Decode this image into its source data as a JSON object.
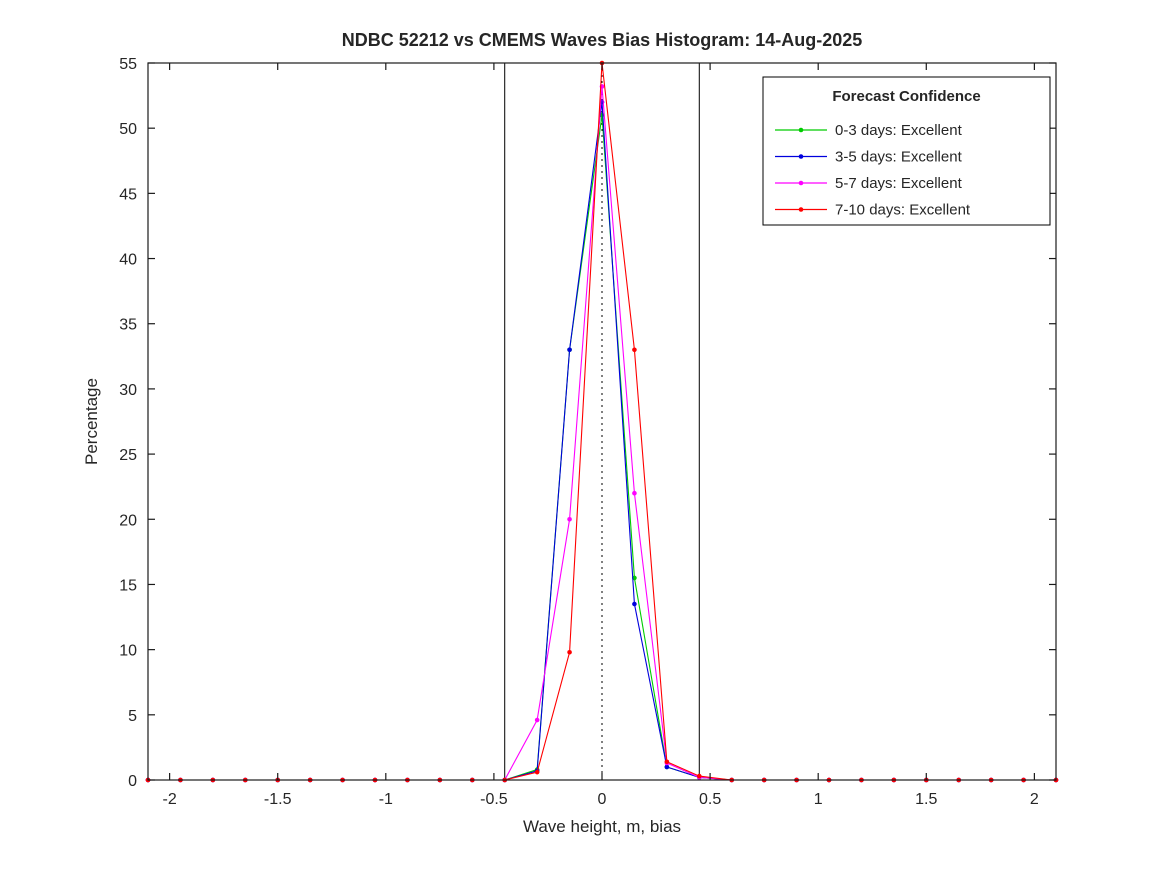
{
  "chart_data": {
    "type": "line",
    "title": "NDBC 52212 vs CMEMS Waves Bias Histogram: 14-Aug-2025",
    "xlabel": "Wave height, m, bias",
    "ylabel": "Percentage",
    "xlim": [
      -2.1,
      2.1
    ],
    "ylim": [
      0,
      55
    ],
    "xticks": [
      -2,
      -1.5,
      -1,
      -0.5,
      0,
      0.5,
      1,
      1.5,
      2
    ],
    "xtick_labels": [
      "-2",
      "-1.5",
      "-1",
      "-0.5",
      "0",
      "0.5",
      "1",
      "1.5",
      "2"
    ],
    "yticks": [
      0,
      5,
      10,
      15,
      20,
      25,
      30,
      35,
      40,
      45,
      50,
      55
    ],
    "ytick_labels": [
      "0",
      "5",
      "10",
      "15",
      "20",
      "25",
      "30",
      "35",
      "40",
      "45",
      "50",
      "55"
    ],
    "grid": false,
    "box": true,
    "vlines_solid": [
      -0.45,
      0.45
    ],
    "vline_dotted": 0,
    "legend_title": "Forecast Confidence",
    "legend_position": "top-right",
    "x": [
      -2.1,
      -1.95,
      -1.8,
      -1.65,
      -1.5,
      -1.35,
      -1.2,
      -1.05,
      -0.9,
      -0.75,
      -0.6,
      -0.45,
      -0.3,
      -0.15,
      0,
      0.15,
      0.3,
      0.45,
      0.6,
      0.75,
      0.9,
      1.05,
      1.2,
      1.35,
      1.5,
      1.65,
      1.8,
      1.95,
      2.1
    ],
    "series": [
      {
        "name": "0-3 days: Excellent",
        "color": "#00cc00",
        "values": [
          0,
          0,
          0,
          0,
          0,
          0,
          0,
          0,
          0,
          0,
          0,
          0,
          0.8,
          33,
          51,
          15.5,
          1.0,
          0.2,
          0,
          0,
          0,
          0,
          0,
          0,
          0,
          0,
          0,
          0,
          0
        ]
      },
      {
        "name": "3-5 days: Excellent",
        "color": "#0000dd",
        "values": [
          0,
          0,
          0,
          0,
          0,
          0,
          0,
          0,
          0,
          0,
          0,
          0,
          0.7,
          33,
          52,
          13.5,
          1.0,
          0.2,
          0,
          0,
          0,
          0,
          0,
          0,
          0,
          0,
          0,
          0,
          0
        ]
      },
      {
        "name": "5-7 days: Excellent",
        "color": "#ff00ff",
        "values": [
          0,
          0,
          0,
          0,
          0,
          0,
          0,
          0,
          0,
          0,
          0,
          0,
          4.6,
          20,
          53.2,
          22,
          1.3,
          0.2,
          0,
          0,
          0,
          0,
          0,
          0,
          0,
          0,
          0,
          0,
          0
        ]
      },
      {
        "name": "7-10 days: Excellent",
        "color": "#ff0000",
        "values": [
          0,
          0,
          0,
          0,
          0,
          0,
          0,
          0,
          0,
          0,
          0,
          0,
          0.6,
          9.8,
          55,
          33,
          1.4,
          0.3,
          0,
          0,
          0,
          0,
          0,
          0,
          0,
          0,
          0,
          0,
          0
        ]
      }
    ]
  }
}
